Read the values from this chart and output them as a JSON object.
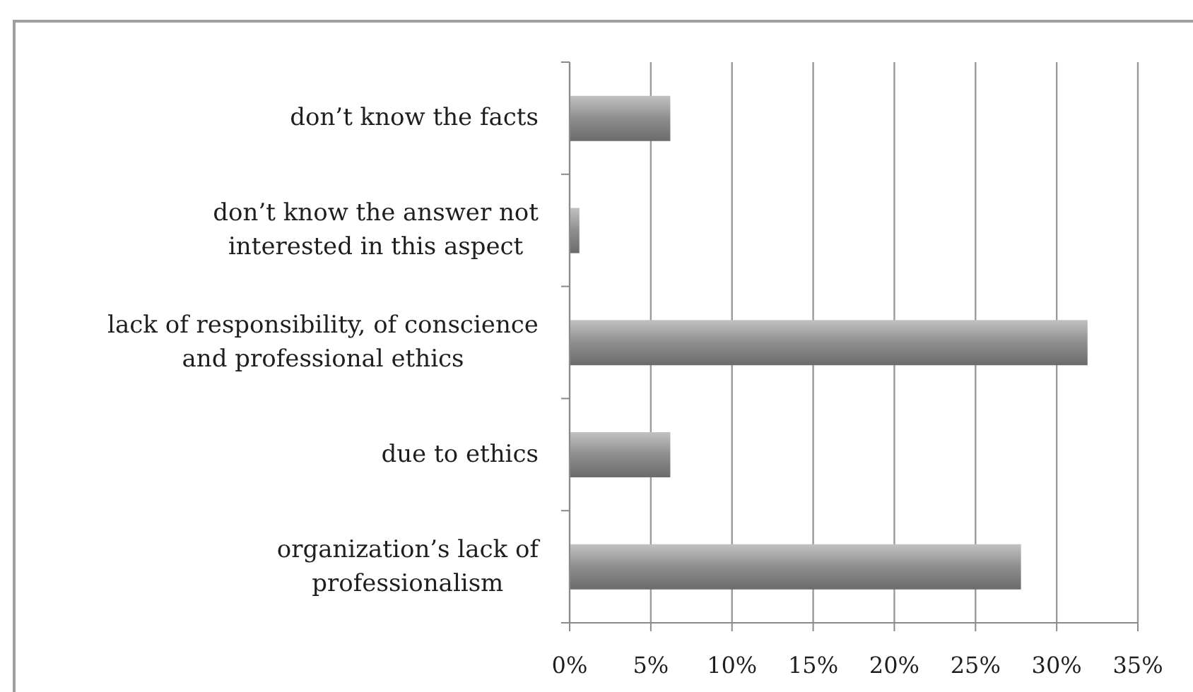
{
  "chart_data": {
    "type": "bar",
    "orientation": "horizontal",
    "categories": [
      "don’t know the facts",
      "don’t know the answer not interested in this aspect",
      "lack of responsibility, of conscience and professional ethics",
      "due to ethics",
      "organization’s lack of professionalism"
    ],
    "values": [
      6.2,
      0.6,
      31.9,
      6.2,
      27.8
    ],
    "color": "#8e8e8e",
    "xlim": [
      0,
      35
    ],
    "xticks": [
      {
        "value": 0,
        "label": "0%"
      },
      {
        "value": 5,
        "label": "5%"
      },
      {
        "value": 10,
        "label": "10%"
      },
      {
        "value": 15,
        "label": "15%"
      },
      {
        "value": 20,
        "label": "20%"
      },
      {
        "value": 25,
        "label": "25%"
      },
      {
        "value": 30,
        "label": "30%"
      },
      {
        "value": 35,
        "label": "35%"
      }
    ],
    "grid": "x"
  }
}
